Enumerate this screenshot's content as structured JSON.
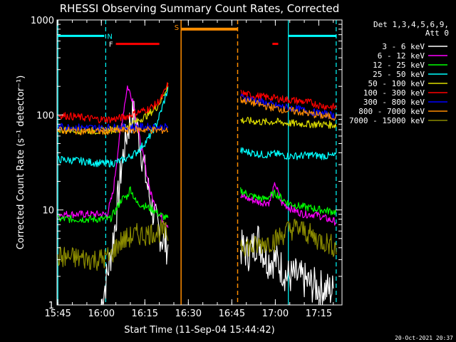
{
  "chart_data": {
    "type": "line",
    "title": "RHESSI Observing Summary Count Rates, Corrected",
    "xlabel": "Start Time (11-Sep-04 15:44:42)",
    "ylabel": "Corrected Count Rate (s⁻¹ detector⁻¹)",
    "yscale": "log",
    "ylim": [
      1,
      1000
    ],
    "xlim": [
      "15:44:42",
      "17:23:00"
    ],
    "x_ticks": [
      "15:45",
      "16:00",
      "16:15",
      "16:30",
      "16:45",
      "17:00",
      "17:15"
    ],
    "y_ticks": [
      "1",
      "10",
      "100",
      "1000"
    ],
    "legend_header": [
      "Det 1,3,4,5,6,9,",
      "Att 0"
    ],
    "legend_position": "right",
    "footer_date": "20-Oct-2021 20:37",
    "series": [
      {
        "name": "3 - 6 keV",
        "color": "#ffffff",
        "points": [
          [
            "16:00",
            1.0
          ],
          [
            "16:03",
            3
          ],
          [
            "16:05",
            8
          ],
          [
            "16:07",
            30
          ],
          [
            "16:09",
            70
          ],
          [
            "16:11",
            105
          ],
          [
            "16:13",
            60
          ],
          [
            "16:15",
            25
          ],
          [
            "16:17",
            12
          ],
          [
            "16:19",
            7
          ],
          [
            "16:21",
            5
          ],
          [
            "16:23",
            4
          ],
          [
            "16:48",
            4
          ],
          [
            "16:51",
            3.5
          ],
          [
            "16:54",
            5
          ],
          [
            "16:57",
            3
          ],
          [
            "17:00",
            3
          ],
          [
            "17:02",
            2.5
          ],
          [
            "17:04",
            2
          ],
          [
            "17:07",
            2
          ],
          [
            "17:10",
            1.8
          ],
          [
            "17:13",
            1.6
          ],
          [
            "17:16",
            1.5
          ],
          [
            "17:20",
            1.4
          ]
        ]
      },
      {
        "name": "6 - 12 keV",
        "color": "#ff00ff",
        "points": [
          [
            "15:45",
            9
          ],
          [
            "15:52",
            9
          ],
          [
            "15:59",
            9
          ],
          [
            "16:02",
            9
          ],
          [
            "16:04",
            15
          ],
          [
            "16:06",
            50
          ],
          [
            "16:08",
            130
          ],
          [
            "16:09",
            200
          ],
          [
            "16:11",
            140
          ],
          [
            "16:13",
            60
          ],
          [
            "16:15",
            30
          ],
          [
            "16:17",
            15
          ],
          [
            "16:19",
            10
          ],
          [
            "16:21",
            8
          ],
          [
            "16:23",
            7
          ],
          [
            "16:48",
            14
          ],
          [
            "16:51",
            13
          ],
          [
            "16:55",
            12
          ],
          [
            "16:58",
            12
          ],
          [
            "17:00",
            19
          ],
          [
            "17:02",
            12
          ],
          [
            "17:06",
            10
          ],
          [
            "17:10",
            9
          ],
          [
            "17:14",
            9
          ],
          [
            "17:18",
            8
          ],
          [
            "17:21",
            7.5
          ]
        ]
      },
      {
        "name": "12 - 25 keV",
        "color": "#00ff00",
        "points": [
          [
            "15:45",
            8
          ],
          [
            "15:52",
            8
          ],
          [
            "15:59",
            8
          ],
          [
            "16:03",
            8
          ],
          [
            "16:05",
            10
          ],
          [
            "16:07",
            13
          ],
          [
            "16:09",
            14
          ],
          [
            "16:10",
            17
          ],
          [
            "16:12",
            12
          ],
          [
            "16:15",
            11
          ],
          [
            "16:18",
            10
          ],
          [
            "16:20",
            9
          ],
          [
            "16:23",
            8
          ],
          [
            "16:48",
            16
          ],
          [
            "16:52",
            14
          ],
          [
            "16:56",
            13
          ],
          [
            "17:00",
            15
          ],
          [
            "17:04",
            12
          ],
          [
            "17:08",
            11
          ],
          [
            "17:12",
            10.5
          ],
          [
            "17:16",
            10
          ],
          [
            "17:21",
            9.5
          ]
        ]
      },
      {
        "name": "25 - 50 keV",
        "color": "#00ffff",
        "points": [
          [
            "15:45",
            34
          ],
          [
            "15:52",
            33
          ],
          [
            "15:59",
            31
          ],
          [
            "16:04",
            31
          ],
          [
            "16:08",
            34
          ],
          [
            "16:12",
            40
          ],
          [
            "16:16",
            55
          ],
          [
            "16:19",
            80
          ],
          [
            "16:21",
            120
          ],
          [
            "16:23",
            190
          ],
          [
            "16:48",
            42
          ],
          [
            "16:52",
            40
          ],
          [
            "16:56",
            38
          ],
          [
            "17:00",
            39
          ],
          [
            "17:04",
            37
          ],
          [
            "17:08",
            37
          ],
          [
            "17:12",
            38
          ],
          [
            "17:16",
            37
          ],
          [
            "17:21",
            37
          ]
        ]
      },
      {
        "name": "50 - 100 keV",
        "color": "#dddd00",
        "points": [
          [
            "15:45",
            70
          ],
          [
            "15:52",
            69
          ],
          [
            "15:59",
            68
          ],
          [
            "16:04",
            70
          ],
          [
            "16:08",
            75
          ],
          [
            "16:12",
            85
          ],
          [
            "16:16",
            100
          ],
          [
            "16:19",
            120
          ],
          [
            "16:21",
            150
          ],
          [
            "16:23",
            210
          ],
          [
            "16:48",
            88
          ],
          [
            "16:52",
            86
          ],
          [
            "16:56",
            84
          ],
          [
            "17:00",
            85
          ],
          [
            "17:04",
            82
          ],
          [
            "17:08",
            81
          ],
          [
            "17:12",
            80
          ],
          [
            "17:16",
            80
          ],
          [
            "17:21",
            78
          ]
        ]
      },
      {
        "name": "100 - 300 keV",
        "color": "#ff0000",
        "points": [
          [
            "15:45",
            100
          ],
          [
            "15:52",
            95
          ],
          [
            "15:59",
            90
          ],
          [
            "16:04",
            90
          ],
          [
            "16:08",
            95
          ],
          [
            "16:12",
            105
          ],
          [
            "16:16",
            115
          ],
          [
            "16:19",
            130
          ],
          [
            "16:21",
            155
          ],
          [
            "16:23",
            210
          ],
          [
            "16:48",
            170
          ],
          [
            "16:52",
            160
          ],
          [
            "16:56",
            155
          ],
          [
            "17:00",
            150
          ],
          [
            "17:04",
            145
          ],
          [
            "17:08",
            140
          ],
          [
            "17:12",
            135
          ],
          [
            "17:16",
            125
          ],
          [
            "17:21",
            120
          ]
        ]
      },
      {
        "name": "300 - 800 keV",
        "color": "#0000ff",
        "points": [
          [
            "15:45",
            75
          ],
          [
            "15:52",
            74
          ],
          [
            "15:59",
            73
          ],
          [
            "16:04",
            74
          ],
          [
            "16:08",
            74
          ],
          [
            "16:12",
            75
          ],
          [
            "16:16",
            75
          ],
          [
            "16:19",
            74
          ],
          [
            "16:21",
            74
          ],
          [
            "16:23",
            75
          ],
          [
            "16:48",
            155
          ],
          [
            "16:52",
            145
          ],
          [
            "16:56",
            135
          ],
          [
            "17:00",
            125
          ],
          [
            "17:04",
            120
          ],
          [
            "17:08",
            115
          ],
          [
            "17:12",
            108
          ],
          [
            "17:16",
            103
          ],
          [
            "17:21",
            98
          ]
        ]
      },
      {
        "name": "800 - 7000 keV",
        "color": "#ff8c00",
        "points": [
          [
            "15:45",
            69
          ],
          [
            "15:52",
            68
          ],
          [
            "15:59",
            67
          ],
          [
            "16:04",
            68
          ],
          [
            "16:08",
            69
          ],
          [
            "16:12",
            70
          ],
          [
            "16:16",
            70
          ],
          [
            "16:19",
            69
          ],
          [
            "16:21",
            69
          ],
          [
            "16:23",
            70
          ],
          [
            "16:48",
            145
          ],
          [
            "16:52",
            135
          ],
          [
            "16:56",
            125
          ],
          [
            "17:00",
            118
          ],
          [
            "17:04",
            112
          ],
          [
            "17:08",
            108
          ],
          [
            "17:12",
            103
          ],
          [
            "17:16",
            98
          ],
          [
            "17:21",
            95
          ]
        ]
      },
      {
        "name": "7000 - 15000 keV",
        "color": "#8b8b00",
        "points": [
          [
            "15:45",
            3.2
          ],
          [
            "15:52",
            3.1
          ],
          [
            "15:59",
            3.0
          ],
          [
            "16:03",
            3.2
          ],
          [
            "16:06",
            4.5
          ],
          [
            "16:09",
            5.0
          ],
          [
            "16:12",
            5.5
          ],
          [
            "16:15",
            5.5
          ],
          [
            "16:18",
            5.8
          ],
          [
            "16:21",
            6
          ],
          [
            "16:23",
            5.5
          ],
          [
            "16:48",
            4.5
          ],
          [
            "16:52",
            4.0
          ],
          [
            "16:56",
            4.5
          ],
          [
            "17:00",
            4.8
          ],
          [
            "17:04",
            6
          ],
          [
            "17:07",
            6.5
          ],
          [
            "17:10",
            6
          ],
          [
            "17:14",
            5
          ],
          [
            "17:18",
            4.5
          ],
          [
            "17:21",
            4
          ]
        ]
      }
    ],
    "annotations": {
      "saa_marker": {
        "label": "S",
        "color": "#ff8c00",
        "vlines": [
          "16:27:30",
          "16:47:00"
        ],
        "bar": [
          "16:27:30",
          "16:47:00"
        ],
        "bar_value": 800
      },
      "night_marker": {
        "label": "N",
        "color": "#00ffff",
        "vlines": [
          "15:45:00",
          "16:01:30",
          "17:04:30",
          "17:21:00"
        ],
        "bars": [
          [
            "15:45:00",
            "16:01:00"
          ],
          [
            "17:04:30",
            "17:21:00"
          ]
        ],
        "bar_value": 680
      },
      "flare_marker": {
        "label": "F",
        "color": "#ff0000",
        "bars": [
          [
            "16:05:00",
            "16:20:00"
          ],
          [
            "16:59:00",
            "17:01:00"
          ]
        ],
        "bar_value": 560
      },
      "data_gap": [
        "16:23:30",
        "16:48:00"
      ]
    }
  }
}
